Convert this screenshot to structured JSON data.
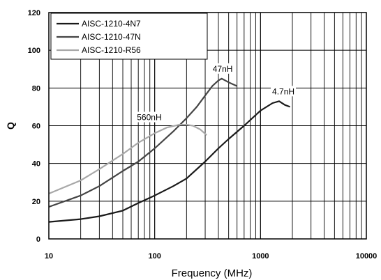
{
  "chart_data": {
    "type": "line",
    "title": "",
    "xlabel": "Frequency (MHz)",
    "ylabel": "Q",
    "x_scale": "log",
    "xlim": [
      10,
      10000
    ],
    "ylim": [
      0,
      120
    ],
    "x_ticks": [
      "10",
      "100",
      "1000",
      "10000"
    ],
    "y_ticks": [
      "0",
      "20",
      "40",
      "60",
      "80",
      "100",
      "120"
    ],
    "grid": true,
    "legend_position": "top-left",
    "series": [
      {
        "name": "AISC-1210-4N7",
        "color": "#1a1a1a",
        "points": [
          [
            10,
            9
          ],
          [
            20,
            10.5
          ],
          [
            30,
            12
          ],
          [
            50,
            15
          ],
          [
            70,
            19
          ],
          [
            100,
            23
          ],
          [
            150,
            28
          ],
          [
            200,
            32
          ],
          [
            300,
            41
          ],
          [
            400,
            48
          ],
          [
            500,
            53
          ],
          [
            700,
            60
          ],
          [
            1000,
            68
          ],
          [
            1300,
            72
          ],
          [
            1500,
            73
          ],
          [
            1700,
            71
          ],
          [
            1900,
            70
          ]
        ],
        "annotation": "4.7nH"
      },
      {
        "name": "AISC-1210-47N",
        "color": "#444444",
        "points": [
          [
            10,
            17
          ],
          [
            20,
            23
          ],
          [
            30,
            28
          ],
          [
            50,
            36
          ],
          [
            70,
            41
          ],
          [
            100,
            48
          ],
          [
            150,
            57
          ],
          [
            200,
            64
          ],
          [
            250,
            70
          ],
          [
            300,
            76
          ],
          [
            350,
            81
          ],
          [
            400,
            84
          ],
          [
            430,
            85
          ],
          [
            500,
            83
          ],
          [
            600,
            81
          ]
        ],
        "annotation": "47nH"
      },
      {
        "name": "AISC-1210-R56",
        "color": "#a8a8a8",
        "points": [
          [
            10,
            24
          ],
          [
            20,
            31
          ],
          [
            30,
            37
          ],
          [
            50,
            45
          ],
          [
            70,
            51
          ],
          [
            100,
            56
          ],
          [
            130,
            59
          ],
          [
            170,
            60.5
          ],
          [
            200,
            60.5
          ],
          [
            230,
            60
          ],
          [
            270,
            58
          ],
          [
            310,
            55
          ]
        ],
        "annotation": "560nH"
      }
    ]
  }
}
